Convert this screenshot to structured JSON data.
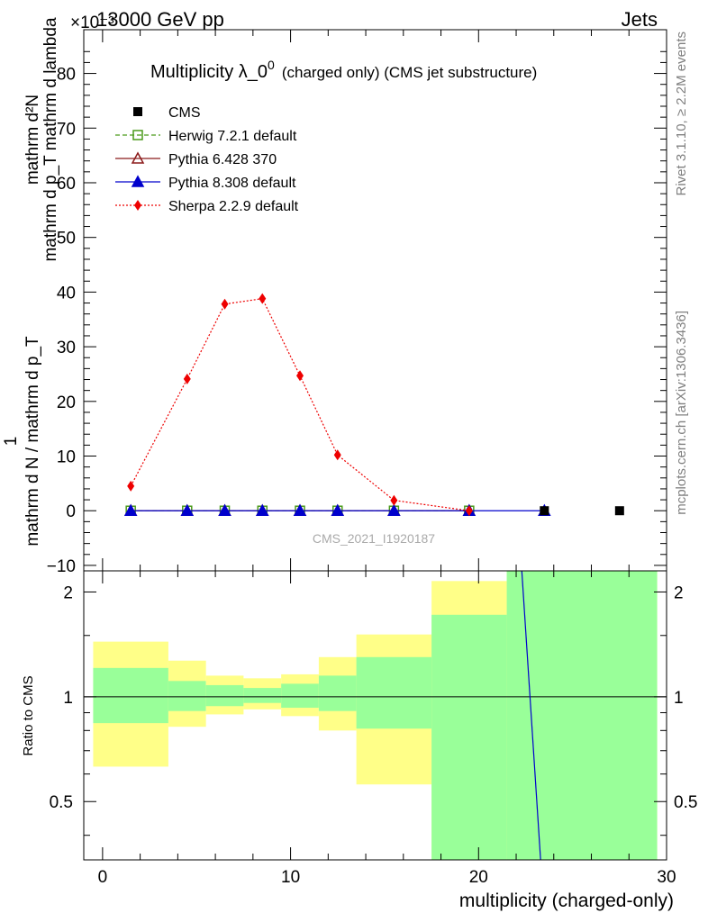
{
  "header": {
    "left": "13000 GeV pp",
    "right": "Jets",
    "exponent": "×10⁻³"
  },
  "side_labels": {
    "rivet": "Rivet 3.1.10, ≥ 2.2M events",
    "mcplots": "mcplots.cern.ch [arXiv:1306.3436]"
  },
  "chart_data": [
    {
      "type": "line",
      "title": "Multiplicity λ_0⁰ (charged only) (CMS jet substructure)",
      "title_main": "Multiplicity λ_0",
      "title_sup": "0",
      "title_rest": "(charged only) (CMS jet substructure)",
      "ylabel_num": "mathrm d²N",
      "ylabel_den": "mathrm d p_T mathrm d lambda",
      "ylabel_one": "1",
      "ylabel_norm": "mathrm d N / mathrm d p_T",
      "watermark": "CMS_2021_I1920187",
      "xlim": [
        -1,
        30
      ],
      "ylim": [
        -11,
        88
      ],
      "yticks": [
        -10,
        0,
        10,
        20,
        30,
        40,
        50,
        60,
        70,
        80
      ],
      "ytick_labels": [
        "−10",
        "0",
        "10",
        "20",
        "30",
        "40",
        "50",
        "60",
        "70",
        "80"
      ],
      "legend_position": "top-left",
      "series": [
        {
          "name": "CMS",
          "color": "#000000",
          "marker": "square-filled",
          "line": "none",
          "x": [
            23.5,
            27.5
          ],
          "y": [
            0,
            0
          ]
        },
        {
          "name": "Herwig 7.2.1 default",
          "color": "#4a9a1a",
          "marker": "square-open",
          "line": "dashed",
          "x": [
            1.5,
            4.5,
            6.5,
            8.5,
            10.5,
            12.5,
            15.5,
            19.5
          ],
          "y": [
            0,
            0,
            0,
            0,
            0,
            0,
            0,
            0
          ]
        },
        {
          "name": "Pythia 6.428 370",
          "color": "#8b1a1a",
          "marker": "triangle-open",
          "line": "solid",
          "x": [
            1.5,
            4.5,
            6.5,
            8.5,
            10.5,
            12.5,
            15.5,
            19.5
          ],
          "y": [
            0,
            0,
            0,
            0,
            0,
            0,
            0,
            0
          ]
        },
        {
          "name": "Pythia 8.308 default",
          "color": "#0000cc",
          "marker": "triangle-filled",
          "line": "solid",
          "x": [
            1.5,
            4.5,
            6.5,
            8.5,
            10.5,
            12.5,
            15.5,
            19.5,
            23.5
          ],
          "y": [
            0,
            0,
            0,
            0,
            0,
            0,
            0,
            0,
            0
          ]
        },
        {
          "name": "Sherpa 2.2.9 default",
          "color": "#ee0000",
          "marker": "diamond-filled",
          "line": "dotted",
          "x": [
            1.5,
            4.5,
            6.5,
            8.5,
            10.5,
            12.5,
            15.5,
            19.5
          ],
          "y": [
            4.5,
            24.1,
            37.8,
            38.8,
            24.7,
            10.2,
            1.9,
            0
          ]
        }
      ]
    },
    {
      "type": "area",
      "ylabel": "Ratio to CMS",
      "xlabel": "multiplicity (charged-only)",
      "xlim": [
        -1,
        30
      ],
      "ylim": [
        0.34,
        2.3
      ],
      "xticks": [
        0,
        10,
        20,
        30
      ],
      "xtick_labels": [
        "0",
        "10",
        "20",
        "30"
      ],
      "yticks": [
        0.5,
        1,
        2
      ],
      "ytick_labels": [
        "0.5",
        "1",
        "2"
      ],
      "reference_line": 1,
      "bands": [
        {
          "x0": -0.5,
          "x1": 3.5,
          "yellow": [
            0.63,
            1.44
          ],
          "green": [
            0.84,
            1.21
          ]
        },
        {
          "x0": 3.5,
          "x1": 5.5,
          "yellow": [
            0.82,
            1.27
          ],
          "green": [
            0.91,
            1.11
          ]
        },
        {
          "x0": 5.5,
          "x1": 7.5,
          "yellow": [
            0.89,
            1.15
          ],
          "green": [
            0.94,
            1.08
          ]
        },
        {
          "x0": 7.5,
          "x1": 9.5,
          "yellow": [
            0.92,
            1.13
          ],
          "green": [
            0.96,
            1.06
          ]
        },
        {
          "x0": 9.5,
          "x1": 11.5,
          "yellow": [
            0.88,
            1.16
          ],
          "green": [
            0.93,
            1.09
          ]
        },
        {
          "x0": 11.5,
          "x1": 13.5,
          "yellow": [
            0.8,
            1.3
          ],
          "green": [
            0.91,
            1.15
          ]
        },
        {
          "x0": 13.5,
          "x1": 17.5,
          "yellow": [
            0.56,
            1.51
          ],
          "green": [
            0.81,
            1.3
          ]
        },
        {
          "x0": 17.5,
          "x1": 21.5,
          "yellow": [
            0.34,
            2.15
          ],
          "green": [
            0.34,
            1.72
          ]
        },
        {
          "x0": 21.5,
          "x1": 29.5,
          "yellow": [
            0.34,
            2.3
          ],
          "green": [
            0.34,
            2.3
          ]
        }
      ],
      "ratio_curve": {
        "name": "Pythia 8.308 default",
        "color": "#0000cc",
        "x": [
          22.3,
          23.3
        ],
        "y": [
          2.3,
          0.34
        ]
      }
    }
  ]
}
